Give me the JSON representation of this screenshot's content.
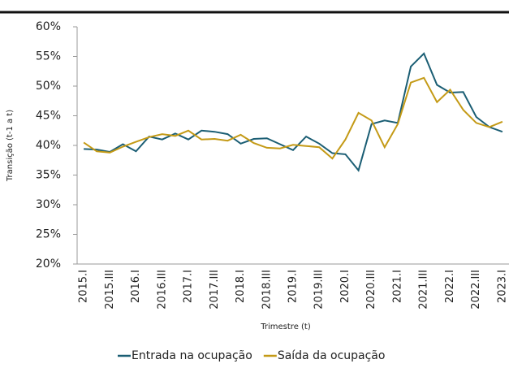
{
  "chart_data": {
    "type": "line",
    "y_label": "Transição (t-1 a t)",
    "x_label": "Trimestre (t)",
    "categories": [
      "2015.I",
      null,
      "2015.III",
      null,
      "2016.I",
      null,
      "2016.III",
      null,
      "2017.I",
      null,
      "2017.III",
      null,
      "2018.I",
      null,
      "2018.III",
      null,
      "2019.I",
      null,
      "2019.III",
      null,
      "2020.I",
      null,
      "2020.III",
      null,
      "2021.I",
      null,
      "2021.III",
      null,
      "2022.I",
      null,
      "2022.III",
      null,
      "2023.I"
    ],
    "series": [
      {
        "name": "Entrada na ocupação",
        "color": "#1b5e74",
        "values": [
          39.4,
          39.3,
          38.9,
          40.2,
          39.0,
          41.5,
          41.0,
          42.0,
          41.0,
          42.5,
          42.3,
          41.9,
          40.3,
          41.1,
          41.2,
          40.2,
          39.2,
          41.5,
          40.3,
          38.7,
          38.5,
          35.8,
          43.6,
          44.2,
          43.8,
          53.3,
          55.5,
          50.2,
          48.9,
          49.0,
          44.8,
          43.1,
          42.3
        ]
      },
      {
        "name": "Saída da ocupação",
        "color": "#c49a16",
        "values": [
          40.5,
          39.0,
          38.8,
          39.8,
          40.6,
          41.4,
          41.9,
          41.6,
          42.5,
          41.0,
          41.1,
          40.8,
          41.8,
          40.4,
          39.6,
          39.5,
          40.1,
          39.9,
          39.7,
          37.8,
          41.0,
          45.5,
          44.2,
          39.7,
          43.6,
          50.6,
          51.4,
          47.3,
          49.4,
          46.0,
          43.8,
          43.1,
          44.0
        ]
      }
    ],
    "ylim": [
      20,
      60
    ],
    "yticks": [
      {
        "value": 20,
        "label": "20%"
      },
      {
        "value": 25,
        "label": "25%"
      },
      {
        "value": 30,
        "label": "30%"
      },
      {
        "value": 35,
        "label": "35%"
      },
      {
        "value": 40,
        "label": "40%"
      },
      {
        "value": 45,
        "label": "45%"
      },
      {
        "value": 50,
        "label": "50%"
      },
      {
        "value": 55,
        "label": "55%"
      },
      {
        "value": 60,
        "label": "60%"
      }
    ],
    "grid": false,
    "legend": "bottom"
  }
}
